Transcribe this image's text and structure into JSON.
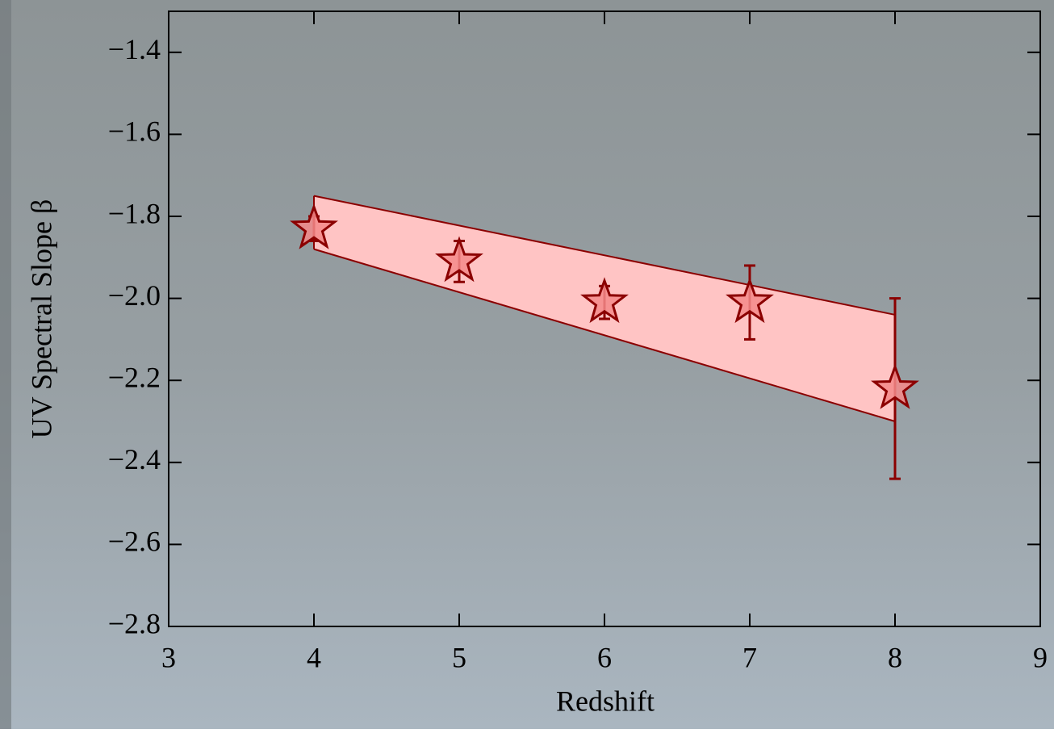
{
  "chart_data": {
    "type": "scatter",
    "xlabel": "Redshift",
    "ylabel": "UV Spectral Slope β",
    "xlim": [
      3,
      9
    ],
    "xticks": [
      3,
      4,
      5,
      6,
      7,
      8,
      9
    ],
    "ylim": [
      -2.8,
      -1.3
    ],
    "yticks": [
      {
        "value": -1.4,
        "label": "−1.4"
      },
      {
        "value": -1.6,
        "label": "−1.6"
      },
      {
        "value": -1.8,
        "label": "−1.8"
      },
      {
        "value": -2.0,
        "label": "−2.0"
      },
      {
        "value": -2.2,
        "label": "−2.2"
      },
      {
        "value": -2.4,
        "label": "−2.4"
      },
      {
        "value": -2.6,
        "label": "−2.6"
      },
      {
        "value": -2.8,
        "label": "−2.8"
      }
    ],
    "band": {
      "x": [
        4,
        8
      ],
      "upper": [
        -1.75,
        -2.04
      ],
      "lower": [
        -1.88,
        -2.3
      ],
      "color": "#ffc4c4",
      "edge_color": "#8b0000"
    },
    "series": [
      {
        "x": [
          4,
          5,
          6,
          7,
          8
        ],
        "values": [
          -1.83,
          -1.91,
          -2.01,
          -2.01,
          -2.22
        ],
        "errors": [
          0.03,
          0.05,
          0.04,
          0.09,
          0.22
        ],
        "color": "#f48a8a",
        "edge_color": "#8b0000"
      }
    ]
  }
}
